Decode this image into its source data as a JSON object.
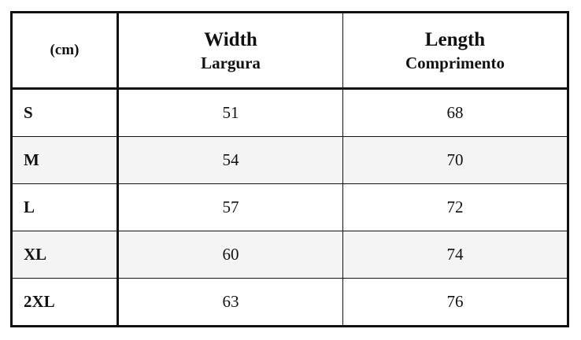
{
  "table": {
    "header": {
      "unit": "(cm)",
      "columns": [
        {
          "title": "Width",
          "subtitle": "Largura"
        },
        {
          "title": "Length",
          "subtitle": "Comprimento"
        }
      ]
    },
    "rows": [
      [
        "S",
        51,
        68
      ],
      [
        "M",
        54,
        70
      ],
      [
        "L",
        57,
        72
      ],
      [
        "XL",
        60,
        74
      ],
      [
        "2XL",
        63,
        76
      ]
    ]
  }
}
